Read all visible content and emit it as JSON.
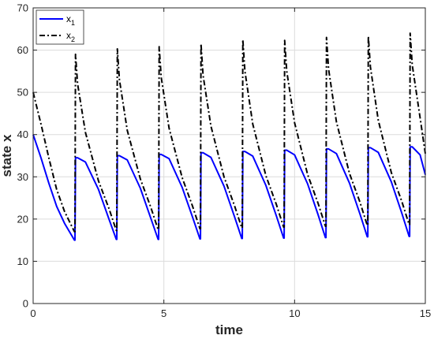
{
  "chart_data": {
    "type": "line",
    "xlabel": "time",
    "ylabel": "state x",
    "xlim": [
      0,
      15
    ],
    "ylim": [
      0,
      70
    ],
    "xticks": [
      0,
      5,
      10,
      15
    ],
    "yticks": [
      0,
      10,
      20,
      30,
      40,
      50,
      60,
      70
    ],
    "grid": true,
    "legend_position": "top-left",
    "series": [
      {
        "name": "x1",
        "name_main": "x",
        "name_sub": "1",
        "color": "#0000ff",
        "style": "solid",
        "x": [
          0,
          0.3,
          0.6,
          0.9,
          1.2,
          1.58,
          1.6,
          1.62,
          1.7,
          2.0,
          2.5,
          2.9,
          3.18,
          3.2,
          3.22,
          3.3,
          3.6,
          4.1,
          4.5,
          4.78,
          4.8,
          4.82,
          4.9,
          5.2,
          5.7,
          6.1,
          6.38,
          6.4,
          6.42,
          6.5,
          6.8,
          7.3,
          7.7,
          7.98,
          8.0,
          8.02,
          8.1,
          8.4,
          8.9,
          9.3,
          9.58,
          9.6,
          9.62,
          9.7,
          10.0,
          10.5,
          10.9,
          11.18,
          11.2,
          11.22,
          11.3,
          11.6,
          12.1,
          12.5,
          12.78,
          12.8,
          12.82,
          12.9,
          13.2,
          13.7,
          14.1,
          14.38,
          14.4,
          14.42,
          14.5,
          14.8,
          15.0
        ],
        "y": [
          40.0,
          34.5,
          28.5,
          23.0,
          19.0,
          15.0,
          15.0,
          34.5,
          34.5,
          33.5,
          27.0,
          20.0,
          15.2,
          15.2,
          35.0,
          35.0,
          34.0,
          27.3,
          20.2,
          15.2,
          15.2,
          35.3,
          35.3,
          34.3,
          27.5,
          20.4,
          15.3,
          15.3,
          35.7,
          35.7,
          34.6,
          27.8,
          20.6,
          15.4,
          15.4,
          36.0,
          36.0,
          34.9,
          28.0,
          20.8,
          15.5,
          15.5,
          36.3,
          36.3,
          35.2,
          28.3,
          21.0,
          15.6,
          15.6,
          36.6,
          36.6,
          35.5,
          28.5,
          21.2,
          15.8,
          15.8,
          36.9,
          36.9,
          35.8,
          28.8,
          21.4,
          15.9,
          15.9,
          37.1,
          37.1,
          35.2,
          30.5
        ]
      },
      {
        "name": "x2",
        "name_main": "x",
        "name_sub": "2",
        "color": "#000000",
        "style": "dashdot",
        "x": [
          0,
          0.3,
          0.6,
          0.9,
          1.2,
          1.58,
          1.6,
          1.62,
          1.7,
          2.0,
          2.5,
          2.9,
          3.18,
          3.2,
          3.22,
          3.3,
          3.6,
          4.1,
          4.5,
          4.78,
          4.8,
          4.82,
          4.9,
          5.2,
          5.7,
          6.1,
          6.38,
          6.4,
          6.42,
          6.5,
          6.8,
          7.3,
          7.7,
          7.98,
          8.0,
          8.02,
          8.1,
          8.4,
          8.9,
          9.3,
          9.58,
          9.6,
          9.62,
          9.7,
          10.0,
          10.5,
          10.9,
          11.18,
          11.2,
          11.22,
          11.3,
          11.6,
          12.1,
          12.5,
          12.78,
          12.8,
          12.82,
          12.9,
          13.2,
          13.7,
          14.1,
          14.38,
          14.4,
          14.42,
          14.5,
          14.8,
          15.0
        ],
        "y": [
          50.0,
          42.5,
          34.5,
          27.0,
          21.8,
          17.0,
          17.0,
          59.0,
          52.0,
          40.5,
          29.0,
          22.5,
          17.3,
          17.3,
          60.3,
          53.0,
          41.0,
          29.5,
          22.8,
          17.5,
          17.5,
          60.8,
          53.5,
          41.5,
          29.8,
          23.0,
          17.7,
          17.7,
          61.5,
          54.0,
          42.0,
          30.0,
          23.2,
          17.9,
          17.9,
          62.5,
          55.0,
          42.5,
          30.3,
          23.5,
          18.1,
          18.1,
          62.3,
          55.0,
          42.8,
          30.5,
          23.7,
          18.3,
          18.3,
          63.0,
          55.5,
          43.0,
          30.8,
          24.0,
          18.5,
          18.5,
          63.3,
          56.0,
          43.4,
          31.0,
          24.2,
          18.7,
          18.7,
          64.0,
          56.5,
          44.0,
          35.5
        ]
      }
    ]
  }
}
